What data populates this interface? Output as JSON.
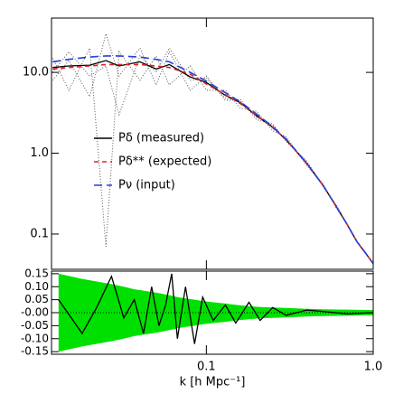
{
  "chart_data": [
    {
      "type": "line",
      "log_x": true,
      "log_y": true,
      "x": [
        0.012,
        0.015,
        0.02,
        0.025,
        0.03,
        0.04,
        0.05,
        0.06,
        0.08,
        0.1,
        0.13,
        0.16,
        0.2,
        0.25,
        0.3,
        0.4,
        0.5,
        0.6,
        0.7,
        0.8,
        0.9,
        1.0
      ],
      "series": [
        {
          "name": "Pδ (measured)",
          "color": "#000000",
          "dash": "none",
          "values": [
            11.5,
            12,
            12.3,
            14,
            12,
            13.5,
            11,
            12.5,
            8.8,
            7.5,
            5.2,
            4.2,
            2.9,
            2.1,
            1.47,
            0.75,
            0.4,
            0.22,
            0.13,
            0.08,
            0.058,
            0.043
          ]
        },
        {
          "name": "Pδ** (expected)",
          "color": "#e02020",
          "dash": "5,4",
          "values": [
            11,
            11.5,
            12,
            12.5,
            12.5,
            12.5,
            12,
            11.5,
            9.5,
            7.2,
            5.3,
            4.1,
            2.95,
            2.07,
            1.48,
            0.74,
            0.4,
            0.22,
            0.13,
            0.08,
            0.058,
            0.043
          ]
        },
        {
          "name": "Pν (input)",
          "color": "#2040e0",
          "dash": "9,5",
          "values": [
            13.5,
            14.5,
            15.5,
            16,
            16,
            15.5,
            14.5,
            13.5,
            10,
            7.8,
            5.6,
            4.3,
            3.05,
            2.12,
            1.5,
            0.75,
            0.4,
            0.22,
            0.13,
            0.08,
            0.058,
            0.043
          ]
        }
      ],
      "realizations": [
        {
          "color": "#555555",
          "values": [
            8,
            14,
            5,
            30,
            9,
            20,
            7,
            18,
            6,
            9,
            4.5,
            4.6,
            2.6,
            2.3,
            1.4,
            0.8,
            0.39,
            0.23,
            0.13,
            0.08,
            0.058,
            0.043
          ]
        },
        {
          "color": "#555555",
          "values": [
            15,
            6,
            20,
            0.07,
            18,
            8,
            16,
            7,
            12,
            6,
            6,
            3.6,
            3.3,
            1.9,
            1.6,
            0.7,
            0.42,
            0.21,
            0.13,
            0.08,
            0.058,
            0.043
          ]
        },
        {
          "color": "#555555",
          "values": [
            10,
            18,
            9,
            12,
            3,
            16,
            10,
            20,
            8,
            8.5,
            4.8,
            4.4,
            2.8,
            2.2,
            1.45,
            0.76,
            0.4,
            0.22,
            0.13,
            0.08,
            0.058,
            0.043
          ]
        }
      ],
      "xlim": [
        0.0118,
        1.0
      ],
      "ylim": [
        0.0366,
        47
      ],
      "yticks": [
        {
          "value": 10,
          "label": "10.0"
        },
        {
          "value": 1,
          "label": "1.0"
        },
        0.1
      ],
      "xticks": [
        0.1,
        {
          "value": 1,
          "label": "1.0"
        }
      ]
    },
    {
      "type": "line",
      "log_x": true,
      "x": [
        0.013,
        0.018,
        0.022,
        0.027,
        0.032,
        0.037,
        0.042,
        0.047,
        0.052,
        0.057,
        0.062,
        0.067,
        0.075,
        0.085,
        0.095,
        0.11,
        0.13,
        0.15,
        0.18,
        0.21,
        0.25,
        0.3,
        0.4,
        0.5,
        0.7,
        1.0
      ],
      "series": [
        {
          "color": "#000000",
          "values": [
            0.05,
            -0.08,
            0.02,
            0.14,
            -0.02,
            0.05,
            -0.08,
            0.1,
            -0.05,
            0.03,
            0.15,
            -0.1,
            0.1,
            -0.12,
            0.06,
            -0.03,
            0.03,
            -0.04,
            0.04,
            -0.03,
            0.02,
            -0.01,
            0.01,
            0.005,
            -0.005,
            0.0
          ]
        }
      ],
      "band": {
        "color": "#00e000",
        "values": [
          0.15,
          0.13,
          0.12,
          0.11,
          0.1,
          0.09,
          0.085,
          0.08,
          0.075,
          0.07,
          0.065,
          0.06,
          0.055,
          0.05,
          0.045,
          0.04,
          0.035,
          0.03,
          0.025,
          0.022,
          0.02,
          0.018,
          0.015,
          0.013,
          0.012,
          0.01
        ]
      },
      "xlim": [
        0.0118,
        1.0
      ],
      "ylim": [
        -0.16,
        0.16
      ],
      "yticks": [
        {
          "value": 0.15,
          "label": "0.15"
        },
        {
          "value": 0.1,
          "label": "0.10"
        },
        {
          "value": 0.05,
          "label": "0.05"
        },
        {
          "value": 0,
          "label": "-0.00"
        },
        {
          "value": -0.05,
          "label": "-0.05"
        },
        {
          "value": -0.1,
          "label": "-0.10"
        },
        {
          "value": -0.15,
          "label": "-0.15"
        }
      ],
      "xticks": [
        0.1,
        {
          "value": 1,
          "label": "1.0"
        }
      ],
      "xlabel": "k [h Mpc⁻¹]"
    }
  ]
}
